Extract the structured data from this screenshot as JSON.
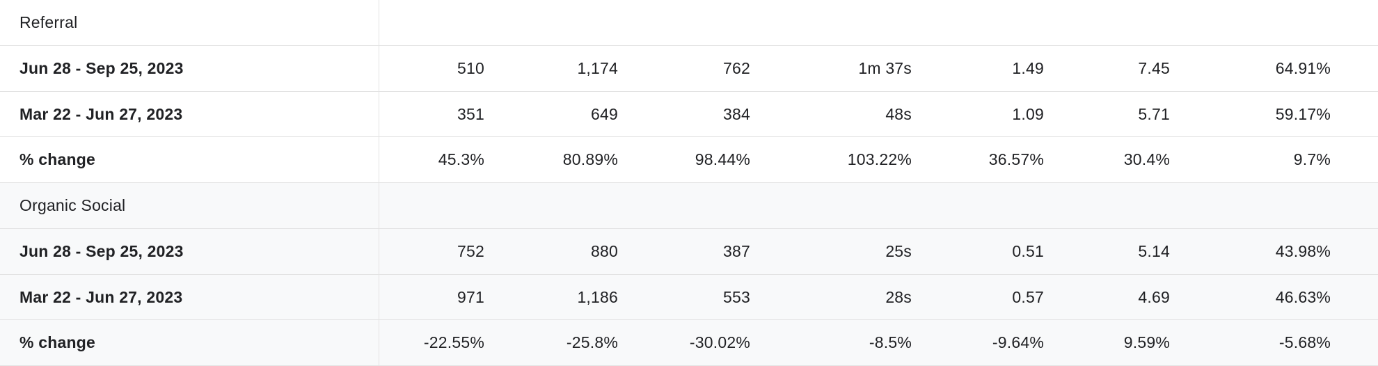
{
  "table": {
    "groups": [
      {
        "label": "Referral",
        "rows": [
          {
            "label": "Jun 28 - Sep 25, 2023",
            "cells": [
              "510",
              "1,174",
              "762",
              "1m 37s",
              "1.49",
              "7.45",
              "64.91%"
            ]
          },
          {
            "label": "Mar 22 - Jun 27, 2023",
            "cells": [
              "351",
              "649",
              "384",
              "48s",
              "1.09",
              "5.71",
              "59.17%"
            ]
          },
          {
            "label": "% change",
            "cells": [
              "45.3%",
              "80.89%",
              "98.44%",
              "103.22%",
              "36.57%",
              "30.4%",
              "9.7%"
            ]
          }
        ]
      },
      {
        "label": "Organic Social",
        "rows": [
          {
            "label": "Jun 28 - Sep 25, 2023",
            "cells": [
              "752",
              "880",
              "387",
              "25s",
              "0.51",
              "5.14",
              "43.98%"
            ]
          },
          {
            "label": "Mar 22 - Jun 27, 2023",
            "cells": [
              "971",
              "1,186",
              "553",
              "28s",
              "0.57",
              "4.69",
              "46.63%"
            ]
          },
          {
            "label": "% change",
            "cells": [
              "-22.55%",
              "-25.8%",
              "-30.02%",
              "-8.5%",
              "-9.64%",
              "9.59%",
              "-5.68%"
            ]
          }
        ]
      }
    ]
  }
}
